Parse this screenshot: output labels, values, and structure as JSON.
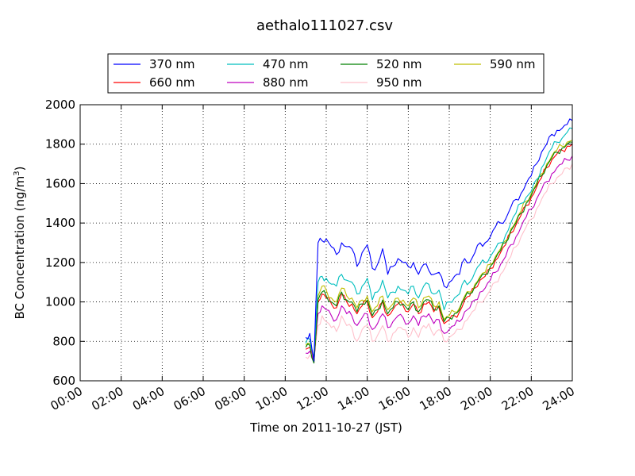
{
  "chart_data": {
    "type": "line",
    "title": "aethalo111027.csv",
    "xlabel": "Time on 2011-10-27 (JST)",
    "ylabel": "BC Concentration (ng/m³)",
    "ylabel_main": "BC Concentration (ng/m",
    "ylabel_sup": "3",
    "ylabel_close": ")",
    "xlim": [
      0,
      24
    ],
    "ylim": [
      600,
      2000
    ],
    "x_unit": "hour",
    "grid": true,
    "legend_position": "top",
    "x_ticks": [
      {
        "value": 0,
        "label": "00:00"
      },
      {
        "value": 2,
        "label": "02:00"
      },
      {
        "value": 4,
        "label": "04:00"
      },
      {
        "value": 6,
        "label": "06:00"
      },
      {
        "value": 8,
        "label": "08:00"
      },
      {
        "value": 10,
        "label": "10:00"
      },
      {
        "value": 12,
        "label": "12:00"
      },
      {
        "value": 14,
        "label": "14:00"
      },
      {
        "value": 16,
        "label": "16:00"
      },
      {
        "value": 18,
        "label": "18:00"
      },
      {
        "value": 20,
        "label": "20:00"
      },
      {
        "value": 22,
        "label": "22:00"
      },
      {
        "value": 24,
        "label": "24:00"
      }
    ],
    "y_ticks": [
      {
        "value": 600,
        "label": "600"
      },
      {
        "value": 800,
        "label": "800"
      },
      {
        "value": 1000,
        "label": "1000"
      },
      {
        "value": 1200,
        "label": "1200"
      },
      {
        "value": 1400,
        "label": "1400"
      },
      {
        "value": 1600,
        "label": "1600"
      },
      {
        "value": 1800,
        "label": "1800"
      },
      {
        "value": 2000,
        "label": "2000"
      }
    ],
    "x": [
      11.0,
      11.2,
      11.4,
      11.6,
      11.8,
      12.0,
      12.25,
      12.5,
      12.75,
      13.0,
      13.25,
      13.5,
      13.75,
      14.0,
      14.25,
      14.5,
      14.75,
      15.0,
      15.25,
      15.5,
      15.75,
      16.0,
      16.25,
      16.5,
      16.75,
      17.0,
      17.25,
      17.5,
      17.75,
      18.0,
      18.25,
      18.5,
      18.75,
      19.0,
      19.25,
      19.5,
      19.75,
      20.0,
      20.25,
      20.5,
      20.75,
      21.0,
      21.25,
      21.5,
      21.75,
      22.0,
      22.25,
      22.5,
      22.75,
      23.0,
      23.25,
      23.5,
      23.75,
      24.0
    ],
    "series": [
      {
        "name": "370 nm",
        "color": "#0000ff",
        "values": [
          820,
          840,
          700,
          1300,
          1310,
          1320,
          1280,
          1240,
          1300,
          1280,
          1270,
          1180,
          1250,
          1290,
          1170,
          1190,
          1270,
          1140,
          1180,
          1220,
          1200,
          1180,
          1200,
          1140,
          1190,
          1160,
          1140,
          1150,
          1080,
          1100,
          1130,
          1140,
          1220,
          1200,
          1250,
          1300,
          1300,
          1330,
          1380,
          1400,
          1420,
          1480,
          1520,
          1550,
          1600,
          1640,
          1700,
          1760,
          1800,
          1850,
          1870,
          1880,
          1900,
          1920
        ]
      },
      {
        "name": "470 nm",
        "color": "#00bfbf",
        "values": [
          790,
          810,
          720,
          1100,
          1130,
          1120,
          1090,
          1080,
          1140,
          1110,
          1100,
          1040,
          1080,
          1120,
          1010,
          1050,
          1110,
          1020,
          1050,
          1080,
          1060,
          1040,
          1080,
          1020,
          1080,
          1090,
          1040,
          1060,
          960,
          1000,
          1020,
          1040,
          1110,
          1100,
          1150,
          1190,
          1200,
          1230,
          1270,
          1300,
          1340,
          1400,
          1450,
          1500,
          1530,
          1560,
          1620,
          1680,
          1730,
          1780,
          1810,
          1830,
          1860,
          1880
        ]
      },
      {
        "name": "520 nm",
        "color": "#008000",
        "values": [
          770,
          780,
          690,
          1010,
          1050,
          1030,
          1000,
          980,
          1050,
          1010,
          1000,
          950,
          990,
          1010,
          930,
          960,
          1010,
          940,
          970,
          1000,
          990,
          960,
          1000,
          950,
          1000,
          1010,
          960,
          980,
          900,
          920,
          940,
          960,
          1020,
          1040,
          1080,
          1120,
          1140,
          1180,
          1220,
          1260,
          1300,
          1360,
          1400,
          1450,
          1500,
          1540,
          1590,
          1640,
          1690,
          1730,
          1760,
          1780,
          1800,
          1810
        ]
      },
      {
        "name": "590 nm",
        "color": "#bfbf00",
        "values": [
          780,
          790,
          700,
          1030,
          1080,
          1060,
          1020,
          1000,
          1070,
          1030,
          1020,
          970,
          1010,
          1030,
          950,
          980,
          1030,
          960,
          990,
          1020,
          1010,
          980,
          1020,
          970,
          1020,
          1030,
          980,
          1000,
          910,
          930,
          950,
          970,
          1030,
          1050,
          1090,
          1130,
          1150,
          1190,
          1230,
          1270,
          1310,
          1370,
          1410,
          1460,
          1510,
          1550,
          1600,
          1650,
          1700,
          1740,
          1770,
          1790,
          1810,
          1820
        ]
      },
      {
        "name": "660 nm",
        "color": "#ff0000",
        "values": [
          760,
          770,
          700,
          1000,
          1040,
          1020,
          990,
          970,
          1040,
          1000,
          990,
          940,
          980,
          1000,
          920,
          950,
          1000,
          930,
          960,
          990,
          980,
          950,
          990,
          940,
          990,
          1000,
          950,
          970,
          890,
          910,
          930,
          950,
          1010,
          1030,
          1070,
          1110,
          1130,
          1170,
          1210,
          1250,
          1290,
          1350,
          1390,
          1440,
          1490,
          1530,
          1580,
          1630,
          1680,
          1720,
          1750,
          1770,
          1790,
          1800
        ]
      },
      {
        "name": "880 nm",
        "color": "#bf00bf",
        "values": [
          740,
          750,
          690,
          940,
          980,
          960,
          930,
          910,
          980,
          940,
          930,
          880,
          920,
          940,
          860,
          890,
          940,
          870,
          900,
          930,
          920,
          890,
          930,
          880,
          930,
          940,
          890,
          910,
          840,
          860,
          880,
          900,
          950,
          970,
          1010,
          1050,
          1070,
          1110,
          1150,
          1190,
          1230,
          1290,
          1330,
          1380,
          1430,
          1470,
          1520,
          1570,
          1610,
          1650,
          1680,
          1700,
          1720,
          1740
        ]
      },
      {
        "name": "950 nm",
        "color": "#ffc0cb",
        "values": [
          720,
          730,
          700,
          880,
          930,
          900,
          870,
          850,
          930,
          880,
          870,
          800,
          860,
          880,
          800,
          830,
          880,
          800,
          840,
          870,
          860,
          820,
          870,
          820,
          880,
          890,
          830,
          860,
          800,
          820,
          840,
          860,
          900,
          930,
          960,
          1000,
          1020,
          1060,
          1100,
          1140,
          1180,
          1230,
          1280,
          1330,
          1380,
          1420,
          1470,
          1520,
          1560,
          1600,
          1630,
          1650,
          1680,
          1700
        ]
      }
    ]
  }
}
